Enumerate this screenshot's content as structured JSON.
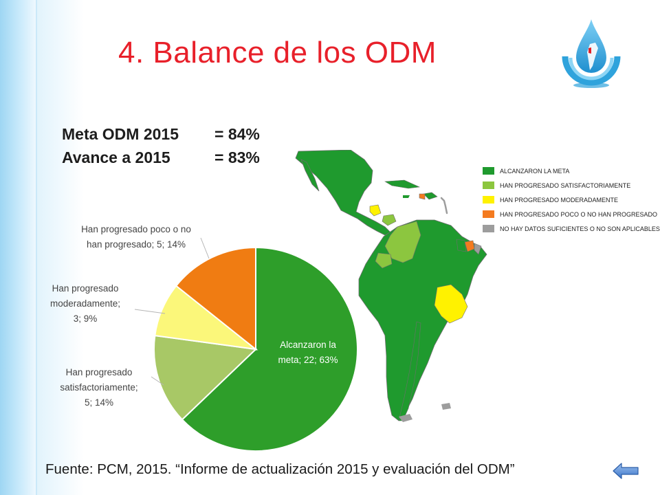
{
  "slide": {
    "title": "4. Balance de los ODM",
    "meta_label": "Meta ODM 2015",
    "meta_value": "= 84%",
    "avance_label": "Avance a 2015",
    "avance_value": "= 83%",
    "source": "Fuente: PCM, 2015. “Informe de actualización 2015 y evaluación del ODM”",
    "back_icon": "back-arrow-icon",
    "logo_icon": "water-drop-map-logo"
  },
  "legend": [
    {
      "label": "ALCANZARON LA META",
      "color": "#1f9a2e"
    },
    {
      "label": "HAN PROGRESADO SATISFACTORIAMENTE",
      "color": "#8cc63f"
    },
    {
      "label": "HAN PROGRESADO MODERADAMENTE",
      "color": "#fff200"
    },
    {
      "label": "HAN PROGRESADO POCO O NO HAN PROGRESADO",
      "color": "#f47b20"
    },
    {
      "label": "NO HAY DATOS SUFICIENTES O NO SON APLICABLES",
      "color": "#9d9d9d"
    }
  ],
  "chart_data": {
    "type": "pie",
    "title": "",
    "slices": [
      {
        "label_lines": [
          "Alcanzaron la",
          "meta; 22; 63%"
        ],
        "value": 22,
        "percent": 63,
        "color": "#2e9e2a"
      },
      {
        "label_lines": [
          "Han progresado",
          "satisfactoriamente;",
          "5; 14%"
        ],
        "value": 5,
        "percent": 14,
        "color": "#a8c866"
      },
      {
        "label_lines": [
          "Han progresado",
          "moderadamente;",
          "3; 9%"
        ],
        "value": 3,
        "percent": 9,
        "color": "#fbf77a"
      },
      {
        "label_lines": [
          "Han progresado poco o no",
          "han progresado; 5; 14%"
        ],
        "value": 5,
        "percent": 14,
        "color": "#f07c12"
      }
    ]
  }
}
